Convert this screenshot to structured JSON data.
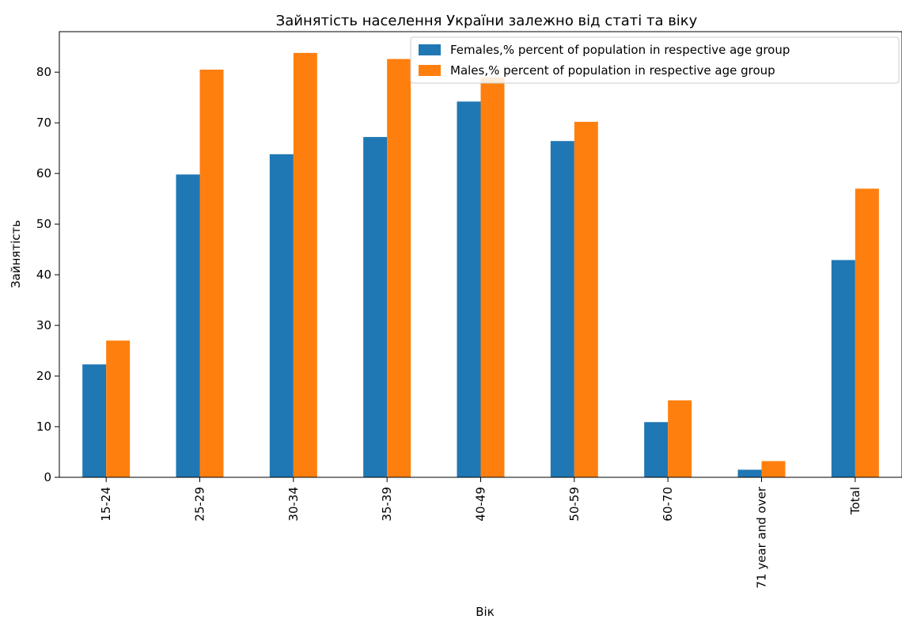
{
  "chart_data": {
    "type": "bar",
    "title": "Зайнятість населення України залежно від статі та віку",
    "xlabel": "Вік",
    "ylabel": "Зайнятість",
    "categories": [
      "15-24",
      "25-29",
      "30-34",
      "35-39",
      "40-49",
      "50-59",
      "60-70",
      "71 year and over",
      "Total"
    ],
    "series": [
      {
        "name": "Females,% percent of population in respective age group",
        "color": "#1f77b4",
        "values": [
          22.3,
          59.8,
          63.8,
          67.2,
          74.2,
          66.4,
          10.9,
          1.5,
          42.9
        ]
      },
      {
        "name": "Males,% percent of population in respective age group",
        "color": "#ff7f0e",
        "values": [
          27.0,
          80.5,
          83.8,
          82.6,
          79.0,
          70.2,
          15.2,
          3.2,
          57.0
        ]
      }
    ],
    "ylim": [
      0,
      88
    ],
    "yticks": [
      0,
      10,
      20,
      30,
      40,
      50,
      60,
      70,
      80
    ],
    "legend_position": "top-right",
    "grid": false
  }
}
